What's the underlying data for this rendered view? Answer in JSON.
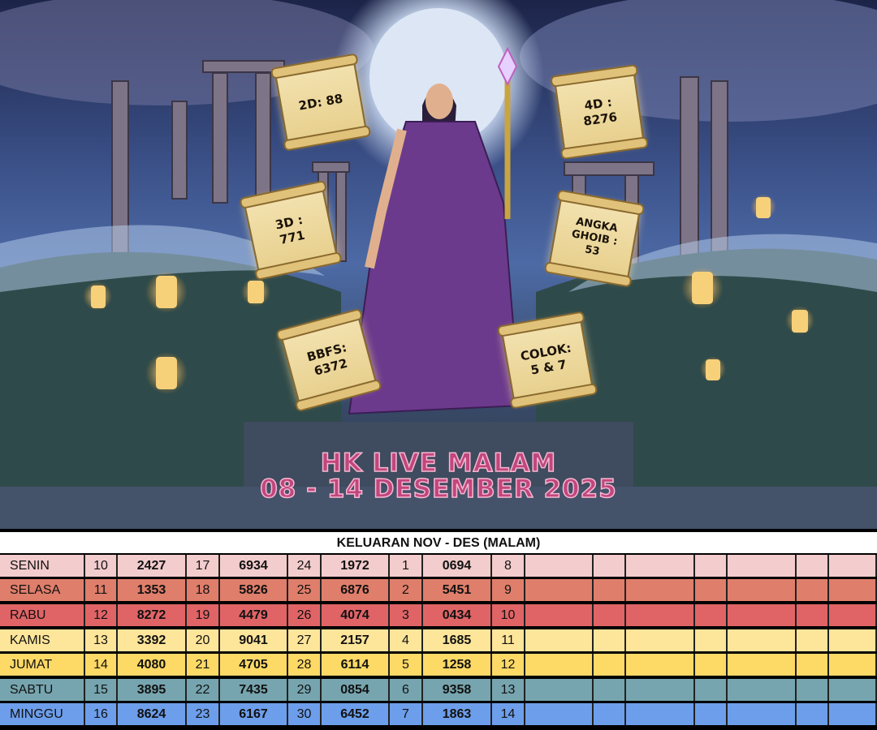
{
  "poster": {
    "title_line1": "HK LIVE MALAM",
    "title_line2": "08 - 14 DESEMBER 2025",
    "scrolls": [
      {
        "label": "2D: 88",
        "lines": [
          "2D: 88"
        ]
      },
      {
        "label": "4D : 8276",
        "lines": [
          "4D :",
          "8276"
        ]
      },
      {
        "label": "3D : 771",
        "lines": [
          "3D :",
          "771"
        ]
      },
      {
        "label": "ANGKA GHOIB : 53",
        "lines": [
          "ANGKA",
          "GHOIB :",
          "53"
        ]
      },
      {
        "label": "BBFS: 6372",
        "lines": [
          "BBFS:",
          "6372"
        ]
      },
      {
        "label": "COLOK: 5 & 7",
        "lines": [
          "COLOK:",
          "5 & 7"
        ]
      }
    ]
  },
  "table": {
    "title": "KELUARAN NOV - DES (MALAM)",
    "rows": [
      {
        "day": "SENIN",
        "color": "#f3cccd",
        "cells": [
          "10",
          "2427",
          "17",
          "6934",
          "24",
          "1972",
          "1",
          "0694",
          "8"
        ]
      },
      {
        "day": "SELASA",
        "color": "#df7e6b",
        "cells": [
          "11",
          "1353",
          "18",
          "5826",
          "25",
          "6876",
          "2",
          "5451",
          "9"
        ]
      },
      {
        "day": "RABU",
        "color": "#e06466",
        "cells": [
          "12",
          "8272",
          "19",
          "4479",
          "26",
          "4074",
          "3",
          "0434",
          "10"
        ]
      },
      {
        "day": "KAMIS",
        "color": "#fde59a",
        "cells": [
          "13",
          "3392",
          "20",
          "9041",
          "27",
          "2157",
          "4",
          "1685",
          "11"
        ]
      },
      {
        "day": "JUMAT",
        "color": "#fdd966",
        "cells": [
          "14",
          "4080",
          "21",
          "4705",
          "28",
          "6114",
          "5",
          "1258",
          "12"
        ]
      },
      {
        "day": "SABTU",
        "color": "#76a5af",
        "cells": [
          "15",
          "3895",
          "22",
          "7435",
          "29",
          "0854",
          "6",
          "9358",
          "13"
        ]
      },
      {
        "day": "MINGGU",
        "color": "#6d9eeb",
        "cells": [
          "16",
          "8624",
          "23",
          "6167",
          "30",
          "6452",
          "7",
          "1863",
          "14"
        ]
      }
    ]
  }
}
